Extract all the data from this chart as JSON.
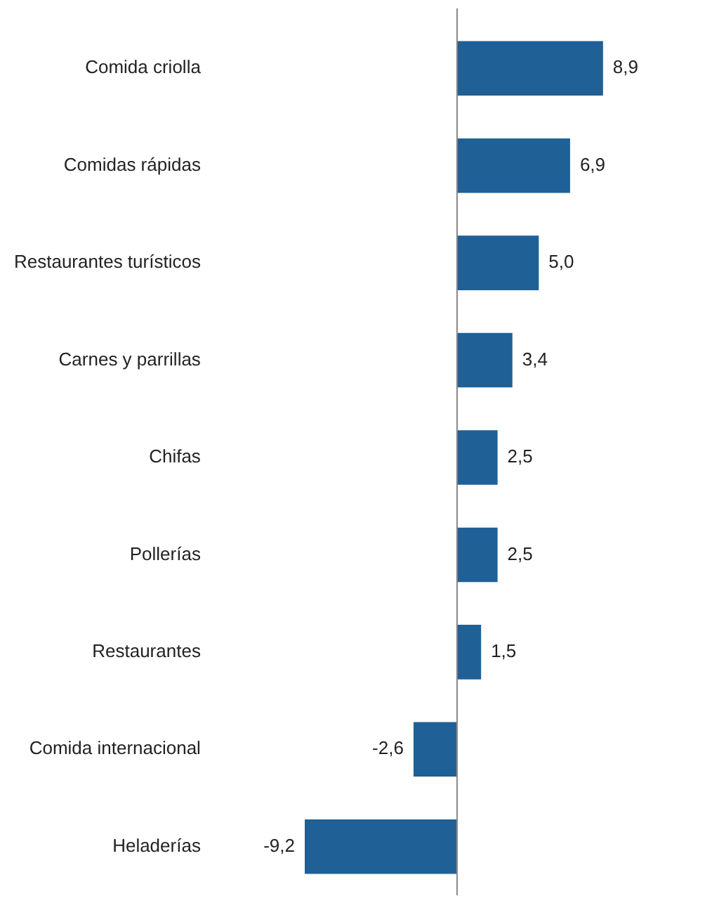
{
  "chart_data": {
    "type": "bar",
    "orientation": "horizontal",
    "categories": [
      "Comida criolla",
      "Comidas rápidas",
      "Restaurantes turísticos",
      "Carnes y parrillas",
      "Chifas",
      "Pollerías",
      "Restaurantes",
      "Comida internacional",
      "Heladerías"
    ],
    "values": [
      8.9,
      6.9,
      5.0,
      3.4,
      2.5,
      2.5,
      1.5,
      -2.6,
      -9.2
    ],
    "value_labels": [
      "8,9",
      "6,9",
      "5,0",
      "3,4",
      "2,5",
      "2,5",
      "1,5",
      "-2,6",
      "-9,2"
    ],
    "color": "#1f6096",
    "tick_labels": "y",
    "legend": false
  }
}
